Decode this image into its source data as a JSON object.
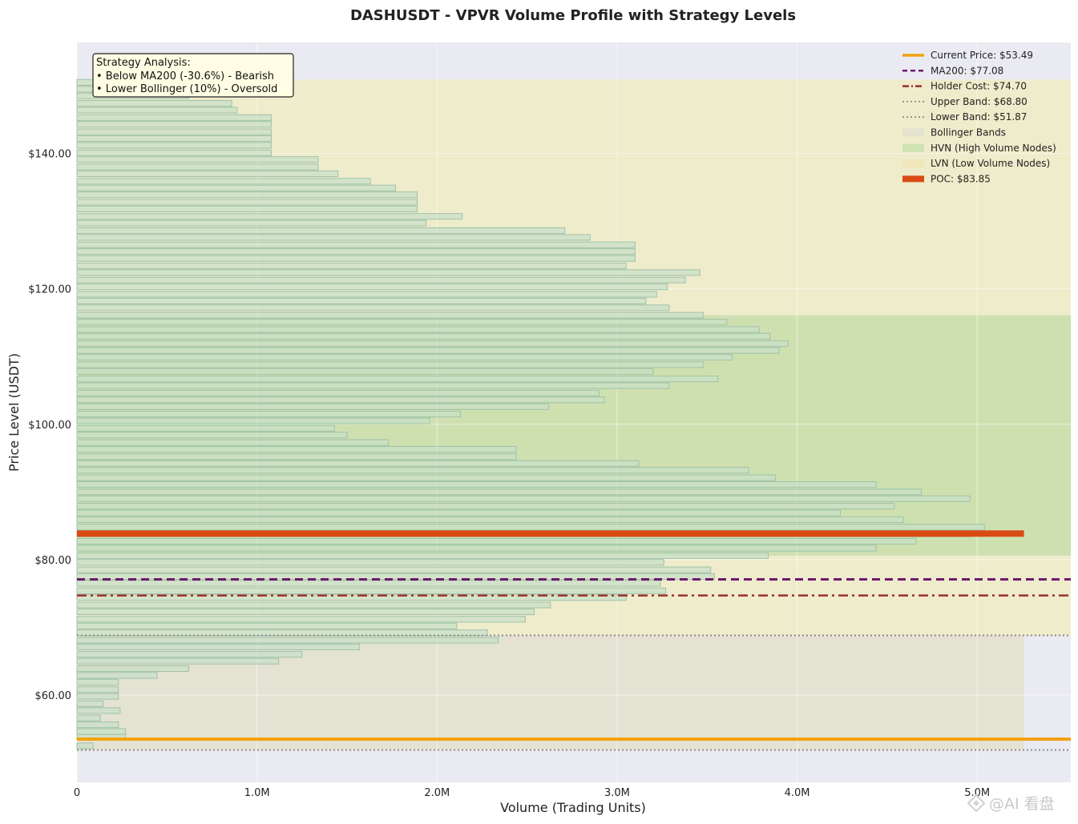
{
  "chart_data": {
    "type": "bar",
    "orientation": "horizontal",
    "title": "DASHUSDT - VPVR Volume Profile with Strategy Levels",
    "xlabel": "Volume (Trading Units)",
    "ylabel": "Price Level (USDT)",
    "xlim": [
      0,
      5520000
    ],
    "ylim": [
      47.1,
      156.4
    ],
    "x_ticks": [
      0,
      1000000,
      2000000,
      3000000,
      4000000,
      5000000
    ],
    "x_tick_labels": [
      "0",
      "1.0M",
      "2.0M",
      "3.0M",
      "4.0M",
      "5.0M"
    ],
    "y_ticks": [
      60,
      80,
      100,
      120,
      140
    ],
    "y_tick_labels": [
      "$60.00",
      "$80.00",
      "$100.00",
      "$120.00",
      "$140.00"
    ],
    "grid": true,
    "legend_position": "top-right",
    "bin_height": 1.0,
    "bins": [
      {
        "price": 52.5,
        "volume": 90000
      },
      {
        "price": 53.8,
        "volume": 270000
      },
      {
        "price": 54.6,
        "volume": 270000
      },
      {
        "price": 55.6,
        "volume": 230000
      },
      {
        "price": 56.6,
        "volume": 130000
      },
      {
        "price": 57.7,
        "volume": 240000
      },
      {
        "price": 58.7,
        "volume": 145000
      },
      {
        "price": 59.8,
        "volume": 230000
      },
      {
        "price": 60.8,
        "volume": 230000
      },
      {
        "price": 61.9,
        "volume": 230000
      },
      {
        "price": 62.9,
        "volume": 445000
      },
      {
        "price": 63.9,
        "volume": 620000
      },
      {
        "price": 65.0,
        "volume": 1120000
      },
      {
        "price": 66.0,
        "volume": 1250000
      },
      {
        "price": 67.1,
        "volume": 1570000
      },
      {
        "price": 68.1,
        "volume": 2340000
      },
      {
        "price": 69.2,
        "volume": 2280000
      },
      {
        "price": 70.2,
        "volume": 2110000
      },
      {
        "price": 71.2,
        "volume": 2490000
      },
      {
        "price": 72.3,
        "volume": 2540000
      },
      {
        "price": 73.3,
        "volume": 2630000
      },
      {
        "price": 74.4,
        "volume": 3050000
      },
      {
        "price": 75.4,
        "volume": 3270000
      },
      {
        "price": 76.5,
        "volume": 3240000
      },
      {
        "price": 77.5,
        "volume": 3540000
      },
      {
        "price": 78.5,
        "volume": 3520000
      },
      {
        "price": 79.6,
        "volume": 3260000
      },
      {
        "price": 80.6,
        "volume": 3840000
      },
      {
        "price": 81.7,
        "volume": 4440000
      },
      {
        "price": 82.7,
        "volume": 4660000
      },
      {
        "price": 83.8,
        "volume": 4960000
      },
      {
        "price": 84.8,
        "volume": 5040000
      },
      {
        "price": 85.9,
        "volume": 4590000
      },
      {
        "price": 86.9,
        "volume": 4240000
      },
      {
        "price": 87.9,
        "volume": 4540000
      },
      {
        "price": 89.0,
        "volume": 4960000
      },
      {
        "price": 90.0,
        "volume": 4690000
      },
      {
        "price": 91.1,
        "volume": 4440000
      },
      {
        "price": 92.1,
        "volume": 3880000
      },
      {
        "price": 93.2,
        "volume": 3730000
      },
      {
        "price": 94.2,
        "volume": 3120000
      },
      {
        "price": 95.2,
        "volume": 2440000
      },
      {
        "price": 96.3,
        "volume": 2440000
      },
      {
        "price": 97.3,
        "volume": 1730000
      },
      {
        "price": 98.4,
        "volume": 1500000
      },
      {
        "price": 99.4,
        "volume": 1430000
      },
      {
        "price": 100.5,
        "volume": 1960000
      },
      {
        "price": 101.5,
        "volume": 2130000
      },
      {
        "price": 102.6,
        "volume": 2620000
      },
      {
        "price": 103.6,
        "volume": 2930000
      },
      {
        "price": 104.6,
        "volume": 2900000
      },
      {
        "price": 105.7,
        "volume": 3290000
      },
      {
        "price": 106.7,
        "volume": 3560000
      },
      {
        "price": 107.8,
        "volume": 3200000
      },
      {
        "price": 108.8,
        "volume": 3480000
      },
      {
        "price": 109.9,
        "volume": 3640000
      },
      {
        "price": 110.9,
        "volume": 3900000
      },
      {
        "price": 111.9,
        "volume": 3950000
      },
      {
        "price": 113.0,
        "volume": 3850000
      },
      {
        "price": 114.0,
        "volume": 3790000
      },
      {
        "price": 115.1,
        "volume": 3610000
      },
      {
        "price": 116.1,
        "volume": 3480000
      },
      {
        "price": 117.2,
        "volume": 3290000
      },
      {
        "price": 118.2,
        "volume": 3160000
      },
      {
        "price": 119.2,
        "volume": 3220000
      },
      {
        "price": 120.3,
        "volume": 3280000
      },
      {
        "price": 121.3,
        "volume": 3380000
      },
      {
        "price": 122.4,
        "volume": 3460000
      },
      {
        "price": 123.4,
        "volume": 3050000
      },
      {
        "price": 124.5,
        "volume": 3100000
      },
      {
        "price": 125.5,
        "volume": 3100000
      },
      {
        "price": 126.5,
        "volume": 3100000
      },
      {
        "price": 127.6,
        "volume": 2850000
      },
      {
        "price": 128.6,
        "volume": 2710000
      },
      {
        "price": 129.7,
        "volume": 1940000
      },
      {
        "price": 130.7,
        "volume": 2140000
      },
      {
        "price": 131.8,
        "volume": 1890000
      },
      {
        "price": 132.8,
        "volume": 1890000
      },
      {
        "price": 133.9,
        "volume": 1890000
      },
      {
        "price": 134.9,
        "volume": 1770000
      },
      {
        "price": 135.9,
        "volume": 1630000
      },
      {
        "price": 137.0,
        "volume": 1450000
      },
      {
        "price": 138.0,
        "volume": 1340000
      },
      {
        "price": 139.1,
        "volume": 1340000
      },
      {
        "price": 140.1,
        "volume": 1080000
      },
      {
        "price": 141.2,
        "volume": 1080000
      },
      {
        "price": 142.2,
        "volume": 1080000
      },
      {
        "price": 143.2,
        "volume": 1080000
      },
      {
        "price": 144.3,
        "volume": 1080000
      },
      {
        "price": 145.3,
        "volume": 1080000
      },
      {
        "price": 146.4,
        "volume": 890000
      },
      {
        "price": 147.4,
        "volume": 860000
      },
      {
        "price": 148.5,
        "volume": 620000
      },
      {
        "price": 149.5,
        "volume": 310000
      },
      {
        "price": 150.5,
        "volume": 90000
      }
    ],
    "hvn_zone": [
      80.6,
      116.1
    ],
    "lvn_zones": [
      [
        116.1,
        150.9
      ],
      [
        68.8,
        80.6
      ]
    ],
    "bollinger_band_zone": [
      51.87,
      68.8
    ],
    "band_fill_max_volume": 5260000,
    "levels": [
      {
        "id": "current",
        "label": "Current Price: $53.49",
        "price": 53.49,
        "color": "#f2a20b",
        "style": "solid",
        "width": 4
      },
      {
        "id": "ma200",
        "label": "MA200: $77.08",
        "price": 77.08,
        "color": "#6e1a6e",
        "style": "dashed",
        "width": 3
      },
      {
        "id": "holder",
        "label": "Holder Cost: $74.70",
        "price": 74.7,
        "color": "#9b2f2b",
        "style": "dashdot",
        "width": 2.5
      },
      {
        "id": "upper",
        "label": "Upper Band: $68.80",
        "price": 68.8,
        "color": "#8c8c8c",
        "style": "dotted",
        "width": 2
      },
      {
        "id": "lower",
        "label": "Lower Band: $51.87",
        "price": 51.87,
        "color": "#8c8c8c",
        "style": "dotted",
        "width": 2
      }
    ],
    "poc": {
      "label": "POC: $83.85",
      "price": 83.85,
      "volume": 5260000,
      "color": "#d94b14"
    },
    "legend": [
      {
        "label": "Current Price: $53.49",
        "kind": "line",
        "color": "#f2a20b",
        "style": "solid"
      },
      {
        "label": "MA200: $77.08",
        "kind": "line",
        "color": "#6e1a6e",
        "style": "dashed"
      },
      {
        "label": "Holder Cost: $74.70",
        "kind": "line",
        "color": "#9b2f2b",
        "style": "dashdot"
      },
      {
        "label": "Upper Band: $68.80",
        "kind": "line",
        "color": "#8c8c8c",
        "style": "dotted"
      },
      {
        "label": "Lower Band: $51.87",
        "kind": "line",
        "color": "#8c8c8c",
        "style": "dotted"
      },
      {
        "label": "Bollinger Bands",
        "kind": "patch",
        "color": "#e3e3cf"
      },
      {
        "label": "HVN (High Volume Nodes)",
        "kind": "patch",
        "color": "#cfe3b5"
      },
      {
        "label": "LVN (Low Volume Nodes)",
        "kind": "patch",
        "color": "#efe7ba"
      },
      {
        "label": "POC: $83.85",
        "kind": "bar",
        "color": "#d94b14"
      }
    ],
    "annotation": {
      "title": "Strategy Analysis:",
      "lines": [
        "• Below MA200 (-30.6%) - Bearish",
        "• Lower Bollinger (10%) - Oversold"
      ]
    }
  },
  "colors": {
    "plot_background": "#eaeaf2",
    "bar_fill": "#c8e0c8",
    "bar_edge": "#9fc2a8",
    "hvn_fill": "#cfe0b0",
    "lvn_fill": "#efeccb",
    "band_fill": "#e3e0cc",
    "grid": "#ffffff"
  },
  "watermark": "@AI 看盘"
}
